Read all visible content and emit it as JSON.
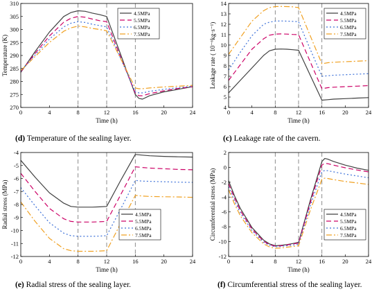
{
  "colors": {
    "c45": "#404040",
    "c55": "#cc0066",
    "c65": "#3a6fd8",
    "c75": "#f0a020",
    "guide": "#7f7f7f"
  },
  "captions": [
    {
      "letter": "(d)",
      "text": " Temperature of the sealing layer."
    },
    {
      "letter": "(c)",
      "text": " Leakage rate of the cavern."
    },
    {
      "letter": "(e)",
      "text": " Radial stress of the sealing layer."
    },
    {
      "letter": "(f)",
      "text": " Circumferential stress of the sealing layer."
    }
  ],
  "chart_data": [
    {
      "type": "line",
      "title": "",
      "xlabel": "Time (h)",
      "ylabel": "Temperature (K)",
      "xlim": [
        0,
        24
      ],
      "ylim": [
        270,
        310
      ],
      "xticks": [
        0,
        4,
        8,
        12,
        16,
        20,
        24
      ],
      "yticks": [
        270,
        275,
        280,
        285,
        290,
        295,
        300,
        305,
        310
      ],
      "ytick_labels": [
        "270",
        "275",
        "280",
        "285",
        "290",
        "295",
        "300",
        "305",
        "310"
      ],
      "vlines": [
        8,
        12,
        16
      ],
      "legend_position": "top-right",
      "series": [
        {
          "name": "4.5MPa",
          "color": "#404040",
          "dash": "",
          "x": [
            0,
            2,
            4,
            6,
            7,
            8,
            9,
            10,
            11,
            12,
            14,
            16,
            16.5,
            17,
            18,
            20,
            22,
            24
          ],
          "y": [
            283.5,
            291.5,
            299,
            305,
            306.5,
            307.2,
            307,
            306.3,
            305.7,
            305,
            290,
            275,
            273.5,
            273.2,
            274.5,
            276,
            277,
            278
          ]
        },
        {
          "name": "5.5MPa",
          "color": "#cc0066",
          "dash": "7,4",
          "x": [
            0,
            2,
            4,
            6,
            7,
            8,
            9,
            10,
            11,
            12,
            14,
            16,
            16.5,
            17,
            18,
            20,
            22,
            24
          ],
          "y": [
            283.7,
            290.8,
            297.5,
            302.8,
            304.3,
            305,
            304.7,
            304,
            303.4,
            303,
            289,
            275.5,
            274.5,
            274.5,
            275.3,
            276.4,
            277.3,
            278
          ]
        },
        {
          "name": "6.5MPa",
          "color": "#3a6fd8",
          "dash": "2,3",
          "x": [
            0,
            2,
            4,
            6,
            7,
            8,
            9,
            10,
            11,
            12,
            14,
            16,
            16.5,
            17,
            18,
            20,
            22,
            24
          ],
          "y": [
            283.9,
            290.2,
            296.3,
            301,
            302.4,
            303,
            302.7,
            302,
            301.5,
            301,
            288.5,
            276,
            275.6,
            275.6,
            276.2,
            277,
            277.6,
            278.2
          ]
        },
        {
          "name": "7.5MPa",
          "color": "#f0a020",
          "dash": "8,3,2,3",
          "x": [
            0,
            2,
            4,
            6,
            7,
            8,
            9,
            10,
            11,
            12,
            14,
            16,
            16.5,
            17,
            18,
            20,
            22,
            24
          ],
          "y": [
            284.2,
            289.6,
            295,
            299.3,
            300.6,
            301.3,
            301,
            300.4,
            300,
            299.5,
            288.5,
            277.5,
            277.2,
            277.2,
            277.5,
            277.9,
            278.2,
            278.5
          ]
        }
      ]
    },
    {
      "type": "line",
      "title": "",
      "xlabel": "Time (h)",
      "ylabel": "Leakage rate ( 10⁻⁶kg·s⁻¹)",
      "xlim": [
        0,
        24
      ],
      "ylim": [
        4,
        14
      ],
      "xticks": [
        0,
        4,
        8,
        12,
        16,
        20,
        24
      ],
      "yticks": [
        4,
        5,
        6,
        7,
        8,
        9,
        10,
        11,
        12,
        13,
        14
      ],
      "ytick_labels": [
        "4",
        "5",
        "6",
        "7",
        "8",
        "9",
        "10",
        "11",
        "12",
        "13",
        "14"
      ],
      "vlines": [
        8,
        12,
        16
      ],
      "legend_position": "top-right",
      "series": [
        {
          "name": "4.5MPa",
          "color": "#404040",
          "dash": "",
          "x": [
            0,
            2,
            4,
            6,
            7,
            8,
            9,
            10,
            11,
            12,
            14,
            16,
            17,
            18,
            20,
            22,
            24
          ],
          "y": [
            5.4,
            6.6,
            7.8,
            9,
            9.45,
            9.6,
            9.62,
            9.6,
            9.55,
            9.5,
            7.1,
            4.7,
            4.75,
            4.8,
            4.85,
            4.9,
            4.95
          ]
        },
        {
          "name": "5.5MPa",
          "color": "#cc0066",
          "dash": "7,4",
          "x": [
            0,
            2,
            4,
            6,
            7,
            8,
            9,
            10,
            11,
            12,
            14,
            16,
            17,
            18,
            20,
            22,
            24
          ],
          "y": [
            6.6,
            8.1,
            9.6,
            10.6,
            10.95,
            11.05,
            11.07,
            11.05,
            11.02,
            11,
            8.4,
            5.8,
            5.9,
            5.95,
            6,
            6.05,
            6.1
          ]
        },
        {
          "name": "6.5MPa",
          "color": "#3a6fd8",
          "dash": "2,3",
          "x": [
            0,
            2,
            4,
            6,
            7,
            8,
            9,
            10,
            11,
            12,
            14,
            16,
            17,
            18,
            20,
            22,
            24
          ],
          "y": [
            7.6,
            9.3,
            10.9,
            12,
            12.2,
            12.3,
            12.32,
            12.3,
            12.28,
            12.25,
            9.6,
            7,
            7.05,
            7.1,
            7.15,
            7.2,
            7.25
          ]
        },
        {
          "name": "7.5MPa",
          "color": "#f0a020",
          "dash": "8,3,2,3",
          "x": [
            0,
            2,
            4,
            6,
            7,
            8,
            9,
            10,
            11,
            12,
            14,
            16,
            17,
            18,
            20,
            22,
            24
          ],
          "y": [
            9.1,
            10.7,
            12.3,
            13.3,
            13.6,
            13.7,
            13.72,
            13.7,
            13.68,
            13.6,
            10.9,
            8.2,
            8.3,
            8.35,
            8.4,
            8.45,
            8.5
          ]
        }
      ]
    },
    {
      "type": "line",
      "title": "",
      "xlabel": "Time (h)",
      "ylabel": "Radial stress (MPa)",
      "xlim": [
        0,
        24
      ],
      "ylim": [
        -12,
        -4
      ],
      "xticks": [
        0,
        4,
        8,
        12,
        16,
        20,
        24
      ],
      "yticks": [
        -12,
        -11,
        -10,
        -9,
        -8,
        -7,
        -6,
        -5,
        -4
      ],
      "ytick_labels": [
        "-12",
        "-11",
        "-10",
        "-9",
        "-8",
        "-7",
        "-6",
        "-5",
        "-4"
      ],
      "vlines": [
        8,
        12,
        16
      ],
      "legend_position": "bottom-right",
      "series": [
        {
          "name": "4.5MPa",
          "color": "#404040",
          "dash": "",
          "x": [
            0,
            2,
            4,
            6,
            7,
            8,
            9,
            10,
            11,
            12,
            14,
            16,
            17,
            18,
            20,
            22,
            24
          ],
          "y": [
            -4.6,
            -5.9,
            -7.1,
            -7.9,
            -8.15,
            -8.2,
            -8.2,
            -8.2,
            -8.18,
            -8.15,
            -6.1,
            -4.15,
            -4.2,
            -4.25,
            -4.3,
            -4.33,
            -4.35
          ]
        },
        {
          "name": "5.5MPa",
          "color": "#cc0066",
          "dash": "7,4",
          "x": [
            0,
            2,
            4,
            6,
            7,
            8,
            9,
            10,
            11,
            12,
            14,
            16,
            17,
            18,
            20,
            22,
            24
          ],
          "y": [
            -5.6,
            -7,
            -8.3,
            -9.1,
            -9.3,
            -9.35,
            -9.35,
            -9.35,
            -9.33,
            -9.3,
            -7.2,
            -5.1,
            -5.15,
            -5.2,
            -5.25,
            -5.3,
            -5.33
          ]
        },
        {
          "name": "6.5MPa",
          "color": "#3a6fd8",
          "dash": "2,3",
          "x": [
            0,
            2,
            4,
            6,
            7,
            8,
            9,
            10,
            11,
            12,
            14,
            16,
            17,
            18,
            20,
            22,
            24
          ],
          "y": [
            -6.7,
            -8.1,
            -9.4,
            -10.2,
            -10.4,
            -10.45,
            -10.45,
            -10.45,
            -10.43,
            -10.4,
            -8.3,
            -6.15,
            -6.2,
            -6.22,
            -6.25,
            -6.28,
            -6.3
          ]
        },
        {
          "name": "7.5MPa",
          "color": "#f0a020",
          "dash": "8,3,2,3",
          "x": [
            0,
            2,
            4,
            6,
            7,
            8,
            9,
            10,
            11,
            12,
            14,
            16,
            17,
            18,
            20,
            22,
            24
          ],
          "y": [
            -7.8,
            -9.3,
            -10.6,
            -11.4,
            -11.55,
            -11.6,
            -11.6,
            -11.6,
            -11.58,
            -11.55,
            -9.4,
            -7.3,
            -7.35,
            -7.38,
            -7.4,
            -7.42,
            -7.45
          ]
        }
      ]
    },
    {
      "type": "line",
      "title": "",
      "xlabel": "Time (h)",
      "ylabel": "Circumferential stress (MPa)",
      "xlim": [
        0,
        24
      ],
      "ylim": [
        -12,
        2
      ],
      "xticks": [
        0,
        4,
        8,
        12,
        16,
        20,
        24
      ],
      "yticks": [
        -12,
        -10,
        -8,
        -6,
        -4,
        -2,
        0,
        2
      ],
      "ytick_labels": [
        "-12",
        "-10",
        "-8",
        "-6",
        "-4",
        "-2",
        "0",
        "2"
      ],
      "vlines": [
        8,
        12,
        16
      ],
      "legend_position": "bottom-right",
      "series": [
        {
          "name": "4.5MPa",
          "color": "#404040",
          "dash": "",
          "x": [
            0,
            1,
            2,
            4,
            6,
            7,
            8,
            9,
            10,
            11,
            12,
            14,
            16,
            16.5,
            17,
            18,
            20,
            22,
            24
          ],
          "y": [
            -1.8,
            -3.8,
            -5.5,
            -8.1,
            -9.8,
            -10.3,
            -10.55,
            -10.5,
            -10.4,
            -10.25,
            -10.1,
            -4.5,
            0.8,
            1.2,
            1.1,
            0.8,
            0.3,
            -0.1,
            -0.4
          ]
        },
        {
          "name": "5.5MPa",
          "color": "#cc0066",
          "dash": "7,4",
          "x": [
            0,
            1,
            2,
            4,
            6,
            7,
            8,
            9,
            10,
            11,
            12,
            14,
            16,
            16.5,
            17,
            18,
            20,
            22,
            24
          ],
          "y": [
            -2.2,
            -4.1,
            -5.8,
            -8.3,
            -9.95,
            -10.4,
            -10.6,
            -10.55,
            -10.45,
            -10.3,
            -10.2,
            -4.8,
            0.3,
            0.55,
            0.5,
            0.3,
            -0.05,
            -0.35,
            -0.6
          ]
        },
        {
          "name": "6.5MPa",
          "color": "#3a6fd8",
          "dash": "2,3",
          "x": [
            0,
            1,
            2,
            4,
            6,
            7,
            8,
            9,
            10,
            11,
            12,
            14,
            16,
            16.5,
            17,
            18,
            20,
            22,
            24
          ],
          "y": [
            -2.6,
            -4.5,
            -6.1,
            -8.5,
            -10.1,
            -10.5,
            -10.7,
            -10.65,
            -10.55,
            -10.45,
            -10.35,
            -5.2,
            -0.6,
            -0.4,
            -0.45,
            -0.6,
            -0.9,
            -1.15,
            -1.4
          ]
        },
        {
          "name": "7.5MPa",
          "color": "#f0a020",
          "dash": "8,3,2,3",
          "x": [
            0,
            1,
            2,
            4,
            6,
            7,
            8,
            9,
            10,
            11,
            12,
            14,
            16,
            16.5,
            17,
            18,
            20,
            22,
            24
          ],
          "y": [
            -3.0,
            -4.9,
            -6.5,
            -8.8,
            -10.3,
            -10.7,
            -10.9,
            -10.85,
            -10.75,
            -10.65,
            -10.55,
            -5.8,
            -1.6,
            -1.45,
            -1.5,
            -1.65,
            -1.9,
            -2.1,
            -2.3
          ]
        }
      ]
    }
  ]
}
